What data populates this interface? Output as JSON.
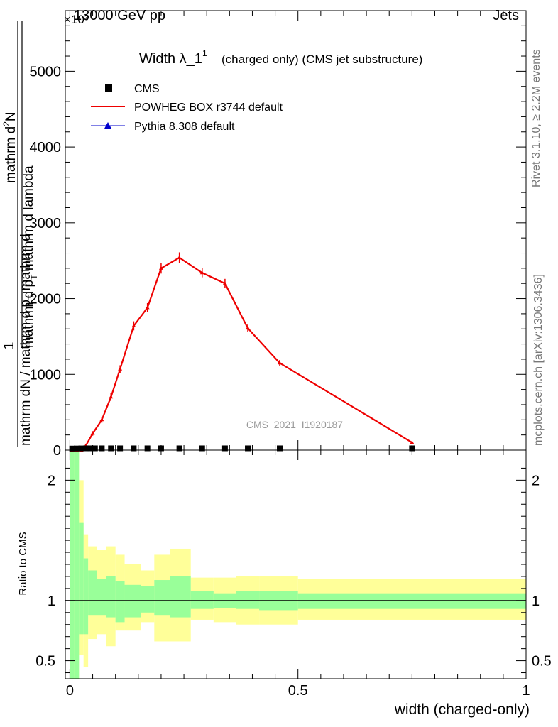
{
  "header": {
    "energy": "13000 GeV pp",
    "exponent": "×10³",
    "category": "Jets"
  },
  "side_labels": {
    "rivet": "Rivet 3.1.10, ≥ 2.2M events",
    "mcplots": "mcplots.cern.ch [arXiv:1306.3436]"
  },
  "chart_data": [
    {
      "type": "line",
      "title": "Width λ_1¹",
      "title_base": "Width λ_1",
      "title_sup": "1",
      "subtitle": "(charged only) (CMS jet substructure)",
      "watermark": "CMS_2021_I1920187",
      "ylabel": {
        "numerator": "1",
        "denominator_top": "mathrm dN / mathrm d p",
        "denominator_sub": "T",
        "denominator_end": " mathrm d",
        "numerator_top": "mathrm d",
        "numerator_top_super": "2",
        "numerator_top_end": "N",
        "numerator_bottom": "mathrm d p",
        "numerator_bottom_sub": "T",
        "numerator_bottom_end": " mathrm d lambda"
      },
      "yscale_note": "values ×10³",
      "ylim": [
        0,
        5800
      ],
      "yticks": [
        0,
        1000,
        2000,
        3000,
        4000,
        5000
      ],
      "xlim": [
        -0.01,
        1.0
      ],
      "legend": {
        "placement": "top-left",
        "entries": [
          "CMS",
          "POWHEG BOX r3744 default",
          "Pythia 8.308 default"
        ]
      },
      "series": [
        {
          "name": "CMS",
          "color": "#000000",
          "marker": "square",
          "x": [
            0.005,
            0.015,
            0.025,
            0.035,
            0.045,
            0.055,
            0.07,
            0.09,
            0.11,
            0.14,
            0.17,
            0.2,
            0.24,
            0.29,
            0.34,
            0.39,
            0.46,
            0.75
          ],
          "y": [
            2,
            3,
            4,
            5,
            5,
            5,
            5,
            5,
            5,
            5,
            5,
            5,
            5,
            5,
            5,
            5,
            5,
            5
          ]
        },
        {
          "name": "POWHEG BOX r3744 default",
          "color": "#ee0000",
          "marker": "triangle",
          "x": [
            0.005,
            0.015,
            0.025,
            0.035,
            0.05,
            0.07,
            0.09,
            0.11,
            0.14,
            0.17,
            0.2,
            0.24,
            0.29,
            0.34,
            0.39,
            0.46,
            0.75
          ],
          "y": [
            0,
            0,
            0,
            60,
            220,
            400,
            700,
            1070,
            1640,
            1880,
            2400,
            2540,
            2340,
            2200,
            1610,
            1150,
            100
          ],
          "yerr": [
            0,
            0,
            0,
            20,
            30,
            40,
            50,
            50,
            60,
            60,
            70,
            70,
            60,
            60,
            50,
            40,
            10
          ]
        },
        {
          "name": "Pythia 8.308 default",
          "color": "#0000cc",
          "marker": "triangle",
          "x": [],
          "y": []
        }
      ]
    },
    {
      "type": "line",
      "ylabel": "Ratio to CMS",
      "xlabel": "width (charged-only)",
      "ylim": [
        0.35,
        2.25
      ],
      "yticks": [
        0.5,
        1,
        2
      ],
      "xticks": [
        0,
        0.5,
        1
      ],
      "xlim": [
        -0.01,
        1.0
      ],
      "bands": {
        "edges": [
          0.0,
          0.01,
          0.02,
          0.03,
          0.04,
          0.06,
          0.08,
          0.1,
          0.12,
          0.155,
          0.185,
          0.22,
          0.265,
          0.315,
          0.365,
          0.415,
          0.5,
          1.0
        ],
        "inner_color": "#99ff99",
        "outer_color": "#ffff99",
        "inner_lo": [
          0.3,
          0.3,
          0.72,
          0.72,
          0.88,
          0.88,
          0.86,
          0.82,
          0.86,
          0.9,
          0.88,
          0.86,
          0.93,
          0.94,
          0.93,
          0.92,
          0.93,
          0.93
        ],
        "inner_hi": [
          2.25,
          2.25,
          1.65,
          1.35,
          1.25,
          1.18,
          1.2,
          1.16,
          1.13,
          1.12,
          1.17,
          1.2,
          1.08,
          1.06,
          1.08,
          1.08,
          1.06,
          1.06
        ],
        "outer_lo": [
          0.3,
          0.3,
          0.55,
          0.45,
          0.68,
          0.72,
          0.62,
          0.75,
          0.75,
          0.82,
          0.66,
          0.66,
          0.84,
          0.82,
          0.8,
          0.8,
          0.84,
          0.86
        ],
        "outer_hi": [
          2.25,
          2.25,
          2.0,
          1.55,
          1.45,
          1.42,
          1.45,
          1.38,
          1.3,
          1.25,
          1.38,
          1.43,
          1.19,
          1.19,
          1.2,
          1.2,
          1.18,
          1.18
        ]
      },
      "reference_line": 1
    }
  ]
}
